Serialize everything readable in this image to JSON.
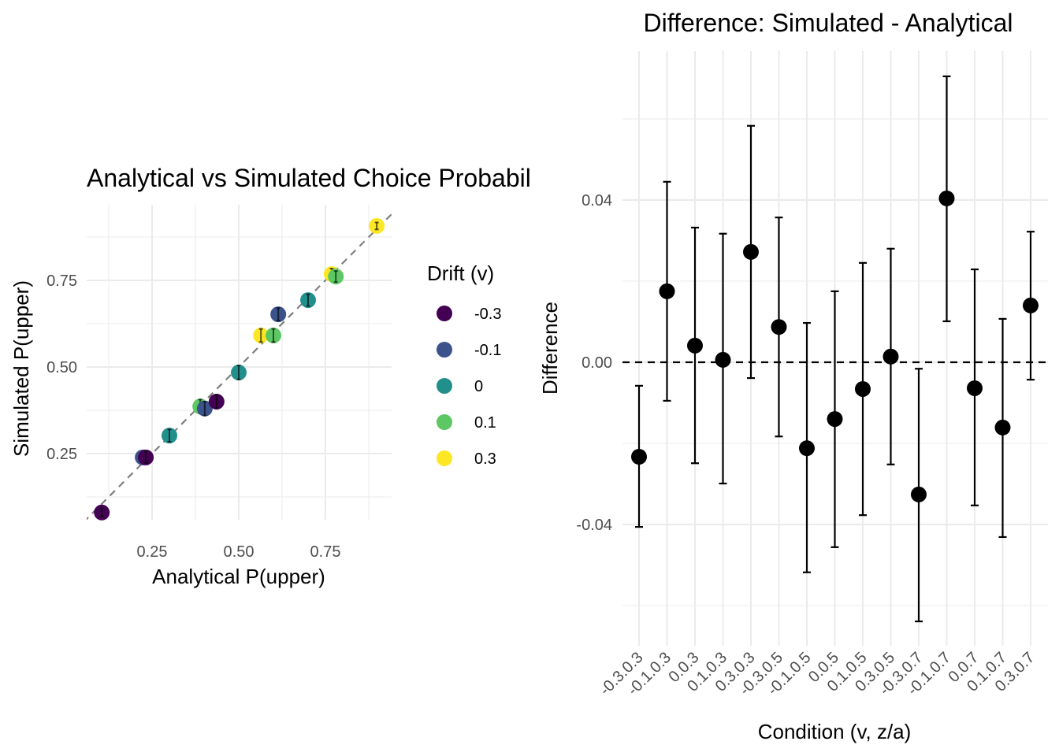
{
  "chart_data": [
    {
      "type": "scatter",
      "title": "Analytical vs Simulated Choice Probabilities",
      "xlabel": "Analytical P(upper)",
      "ylabel": "Simulated P(upper)",
      "xlim": [
        0.061,
        0.941
      ],
      "ylim": [
        0.059,
        0.968
      ],
      "xticks": [
        "0.25",
        "0.50",
        "0.75"
      ],
      "yticks": [
        "0.25",
        "0.50",
        "0.75"
      ],
      "xtick_values": [
        0.25,
        0.5,
        0.75
      ],
      "ytick_values": [
        0.25,
        0.5,
        0.75
      ],
      "grid": true,
      "reference_line": "y = x (dashed)",
      "legend": {
        "title": "Drift (v)",
        "placement": "right",
        "entries": [
          {
            "label": "-0.3",
            "color": "#440154"
          },
          {
            "label": "-0.1",
            "color": "#3B528B"
          },
          {
            "label": "0",
            "color": "#21908C"
          },
          {
            "label": "0.1",
            "color": "#5DC863"
          },
          {
            "label": "0.3",
            "color": "#FDE725"
          }
        ]
      },
      "points": [
        {
          "v": "-0.3",
          "x": 0.105,
          "y": 0.08,
          "se": 0.012
        },
        {
          "v": "-0.1",
          "x": 0.223,
          "y": 0.239,
          "se": 0.016
        },
        {
          "v": "-0.3",
          "x": 0.232,
          "y": 0.239,
          "se": 0.016
        },
        {
          "v": "0",
          "x": 0.3,
          "y": 0.302,
          "se": 0.018
        },
        {
          "v": "0.1",
          "x": 0.389,
          "y": 0.386,
          "se": 0.02
        },
        {
          "v": "-0.1",
          "x": 0.402,
          "y": 0.38,
          "se": 0.02
        },
        {
          "v": "-0.3",
          "x": 0.436,
          "y": 0.4,
          "se": 0.019
        },
        {
          "v": "0",
          "x": 0.5,
          "y": 0.484,
          "se": 0.02
        },
        {
          "v": "0.3",
          "x": 0.564,
          "y": 0.591,
          "se": 0.019
        },
        {
          "v": "0.1",
          "x": 0.6,
          "y": 0.591,
          "se": 0.019
        },
        {
          "v": "-0.1",
          "x": 0.614,
          "y": 0.652,
          "se": 0.018
        },
        {
          "v": "0",
          "x": 0.7,
          "y": 0.693,
          "se": 0.017
        },
        {
          "v": "0.3",
          "x": 0.768,
          "y": 0.768,
          "se": 0.016
        },
        {
          "v": "0.1",
          "x": 0.78,
          "y": 0.761,
          "se": 0.016
        },
        {
          "v": "0.3",
          "x": 0.898,
          "y": 0.907,
          "se": 0.01
        }
      ]
    },
    {
      "type": "scatter",
      "title": "Difference: Simulated - Analytical",
      "xlabel": "Condition (v, z/a)",
      "ylabel": "Difference",
      "ylim": [
        -0.0699,
        0.0767
      ],
      "yticks": [
        "0.04",
        "0.00",
        "-0.04"
      ],
      "ytick_values": [
        0.04,
        0.0,
        -0.04
      ],
      "grid": true,
      "reference_line": "y = 0 (dashed)",
      "categories": [
        "-0.3.0.3",
        "-0.1.0.3",
        "0.0.3",
        "0.1.0.3",
        "0.3.0.3",
        "-0.3.0.5",
        "-0.1.0.5",
        "0.0.5",
        "0.1.0.5",
        "0.3.0.5",
        "-0.3.0.7",
        "-0.1.0.7",
        "0.0.7",
        "0.1.0.7",
        "0.3.0.7"
      ],
      "values": [
        -0.0233,
        0.0175,
        0.0041,
        0.0006,
        0.0272,
        0.0087,
        -0.0212,
        -0.014,
        -0.0066,
        0.0014,
        -0.0326,
        0.0404,
        -0.0064,
        -0.0161,
        0.014
      ],
      "upper": [
        -0.0058,
        0.0445,
        0.0332,
        0.0317,
        0.0583,
        0.0357,
        0.0097,
        0.0175,
        0.0245,
        0.028,
        -0.0016,
        0.0705,
        0.0229,
        0.0107,
        0.0322
      ],
      "lower": [
        -0.0406,
        -0.0095,
        -0.0249,
        -0.0299,
        -0.0039,
        -0.0183,
        -0.0518,
        -0.0456,
        -0.0377,
        -0.0252,
        -0.0639,
        0.0101,
        -0.0353,
        -0.0431,
        -0.0043
      ]
    }
  ]
}
